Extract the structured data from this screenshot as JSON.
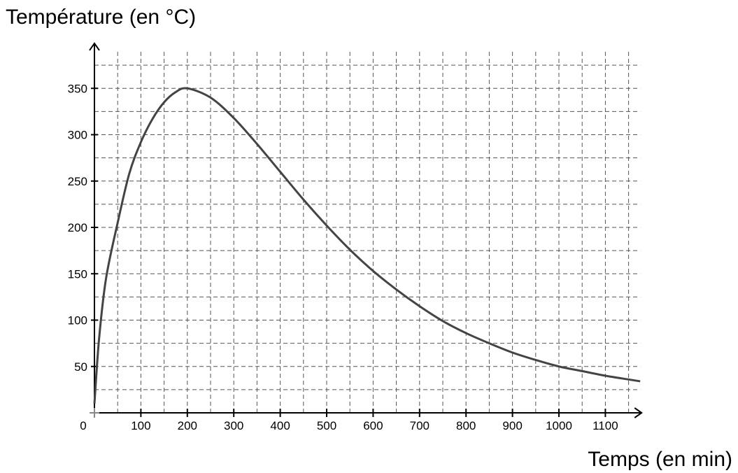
{
  "chart_data": {
    "type": "line",
    "ylabel": "Température (en °C)",
    "xlabel": "Temps (en min)",
    "origin_label": "0",
    "xlim": [
      0,
      1175
    ],
    "ylim": [
      0,
      397
    ],
    "x_ticks": [
      100,
      200,
      300,
      400,
      500,
      600,
      700,
      800,
      900,
      1000,
      1100
    ],
    "y_ticks": [
      50,
      100,
      150,
      200,
      250,
      300,
      350
    ],
    "x_grid_step": 50,
    "y_grid_step": 25,
    "grid": true,
    "grid_style": "dashed",
    "series": [
      {
        "x": [
          0,
          10,
          25,
          50,
          75,
          100,
          125,
          150,
          175,
          200,
          250,
          300,
          350,
          400,
          450,
          500,
          550,
          600,
          650,
          700,
          750,
          800,
          850,
          900,
          950,
          1000,
          1050,
          1100,
          1150,
          1175
        ],
        "y": [
          10,
          80,
          145,
          205,
          258,
          292,
          317,
          335,
          346,
          350,
          340,
          318,
          290,
          260,
          230,
          202,
          176,
          153,
          133,
          115,
          99,
          86,
          75,
          65,
          57,
          50,
          45,
          40,
          36,
          34
        ],
        "color": "#444444"
      }
    ]
  }
}
